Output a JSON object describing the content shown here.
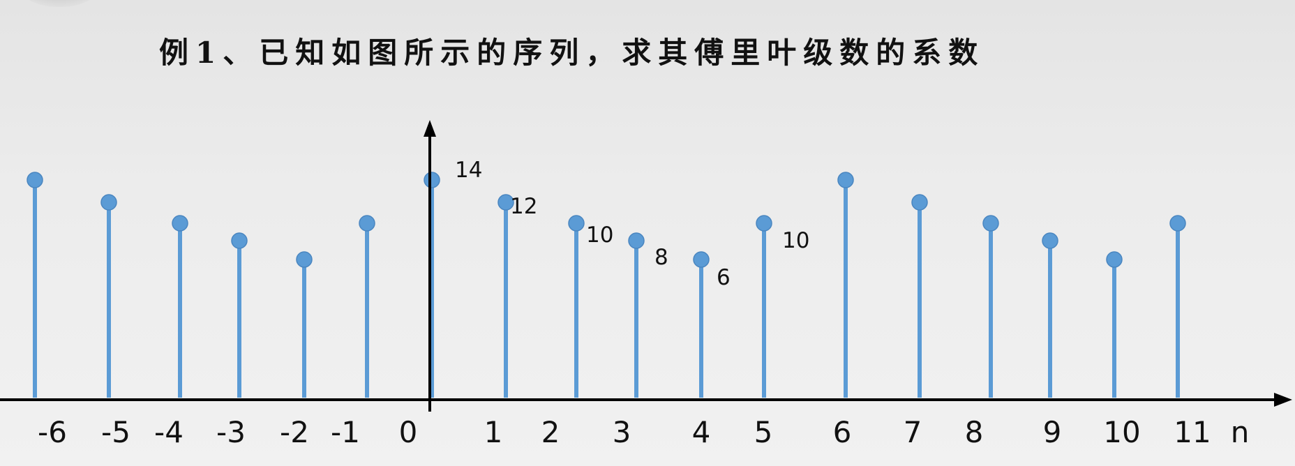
{
  "title": "例1、已知如图所示的序列，求其傅里叶级数的系数",
  "chart_data": {
    "type": "stem",
    "xlabel": "n",
    "x": [
      -6,
      -5,
      -4,
      -3,
      -2,
      -1,
      0,
      1,
      2,
      3,
      4,
      5,
      6,
      7,
      8,
      9,
      10,
      11
    ],
    "values": [
      14,
      12,
      10,
      8,
      6,
      10,
      14,
      12,
      10,
      8,
      6,
      10,
      14,
      12,
      10,
      8,
      6,
      10
    ],
    "value_labels": [
      {
        "n": 0,
        "text": "14"
      },
      {
        "n": 1,
        "text": "12"
      },
      {
        "n": 2,
        "text": "10"
      },
      {
        "n": 3,
        "text": "8"
      },
      {
        "n": 4,
        "text": "6"
      },
      {
        "n": 5,
        "text": "10"
      }
    ],
    "tick_labels": [
      "-6",
      "-5",
      "-4",
      "-3",
      "-2",
      "-1",
      "0",
      "1",
      "2",
      "3",
      "4",
      "5",
      "6",
      "7",
      "8",
      "9",
      "10",
      "11"
    ],
    "stem_color": "#5b9bd5",
    "axis_color": "#000000",
    "legend": "none",
    "grid": false
  }
}
